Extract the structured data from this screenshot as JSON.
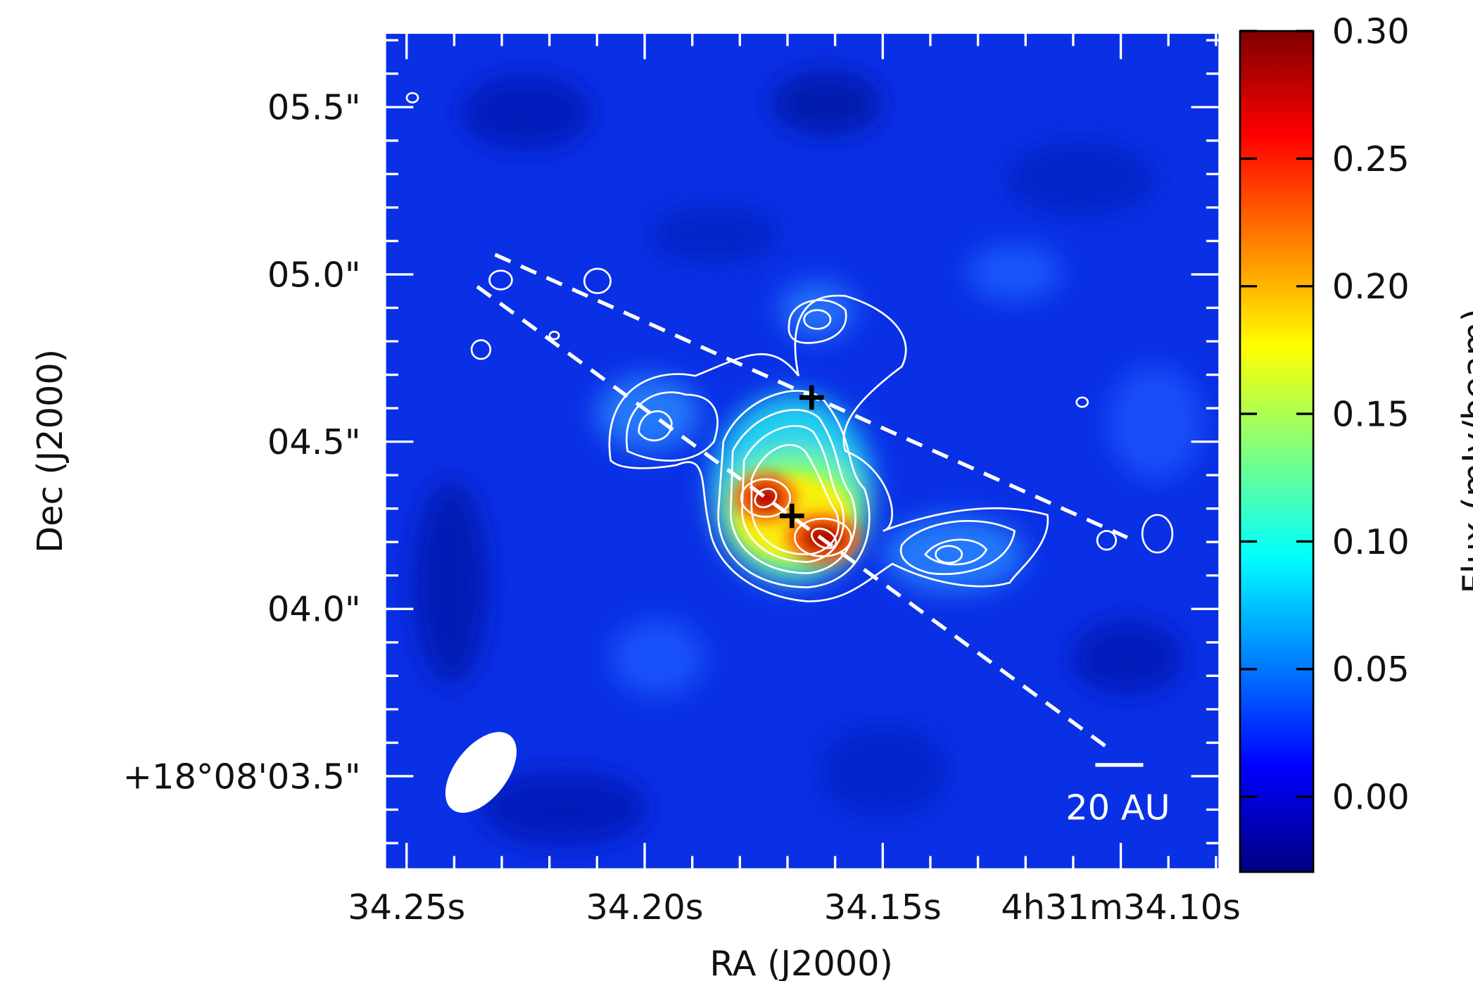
{
  "chart_data": {
    "type": "image",
    "xlabel": "RA (J2000)",
    "ylabel": "Dec (J2000)",
    "xlim": [
      34.2545,
      34.0793
    ],
    "xticks": [
      {
        "value": 34.25,
        "label": "34.25s"
      },
      {
        "value": 34.2,
        "label": "34.20s"
      },
      {
        "value": 34.15,
        "label": "34.15s"
      },
      {
        "value": 34.1,
        "label": "4h31m34.10s"
      }
    ],
    "ylim": [
      3.222,
      5.722
    ],
    "yticks": [
      {
        "value": 5.5,
        "label": "05.5\""
      },
      {
        "value": 5.0,
        "label": "05.0\""
      },
      {
        "value": 4.5,
        "label": "04.5\""
      },
      {
        "value": 4.0,
        "label": "04.0\""
      },
      {
        "value": 3.5,
        "label": "+18°08'03.5\""
      }
    ],
    "scale_bar_label": "20 AU",
    "colorbar": {
      "label": "Flux (mJy/beam)",
      "colormap": [
        "#00007f",
        "#0000ff",
        "#007fff",
        "#00ffff",
        "#7fff7f",
        "#ffff00",
        "#ff7f00",
        "#ff0000",
        "#7f0000"
      ],
      "clim": [
        -0.0295,
        0.3
      ],
      "ticks": [
        {
          "value": 0.3,
          "label": "0.30"
        },
        0.25,
        {
          "value": 0.2,
          "label": "0.20"
        },
        0.15,
        {
          "value": 0.1,
          "label": "0.10"
        },
        0.05,
        {
          "value": 0.0,
          "label": "0.00"
        }
      ]
    }
  }
}
